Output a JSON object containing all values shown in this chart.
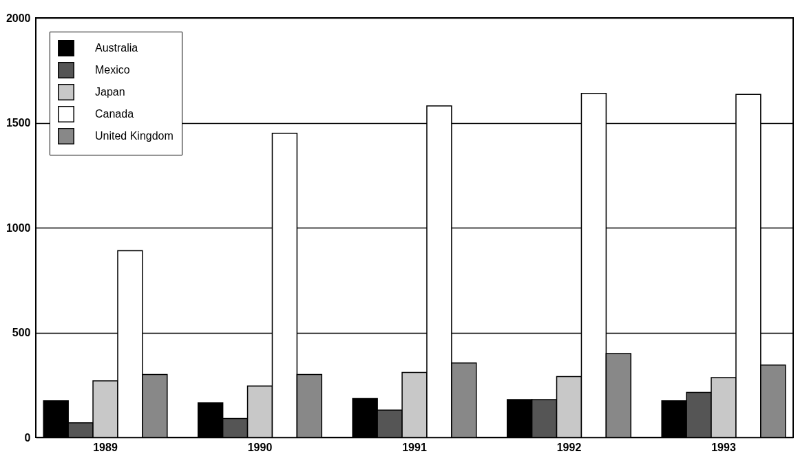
{
  "chart_data": {
    "type": "bar",
    "categories": [
      "1989",
      "1990",
      "1991",
      "1992",
      "1993"
    ],
    "series": [
      {
        "name": "Australia",
        "color": "#000000",
        "values": [
          175,
          165,
          185,
          180,
          175
        ]
      },
      {
        "name": "Mexico",
        "color": "#555555",
        "values": [
          70,
          90,
          130,
          180,
          215
        ]
      },
      {
        "name": "Japan",
        "color": "#c8c8c8",
        "values": [
          270,
          245,
          310,
          290,
          285
        ]
      },
      {
        "name": "Canada",
        "color": "#ffffff",
        "values": [
          890,
          1450,
          1580,
          1640,
          1635
        ]
      },
      {
        "name": "United Kingdom",
        "color": "#888888",
        "values": [
          300,
          300,
          355,
          400,
          345
        ]
      }
    ],
    "ylim": [
      0,
      2000
    ],
    "yticks": [
      0,
      500,
      1000,
      1500,
      2000
    ],
    "grid": "y",
    "legend": "top left"
  }
}
